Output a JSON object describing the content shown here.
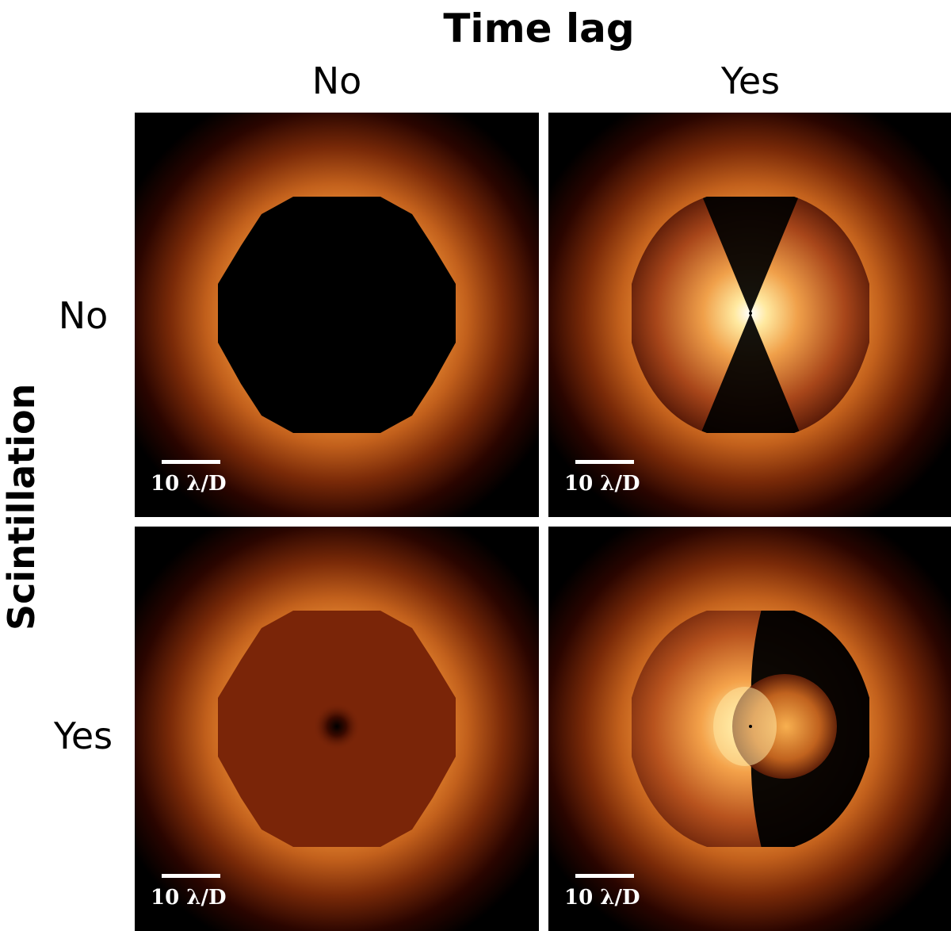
{
  "figure": {
    "column_axis_title": "Time lag",
    "row_axis_title": "Scintillation",
    "column_labels": [
      "No",
      "Yes"
    ],
    "row_labels": [
      "No",
      "Yes"
    ],
    "scale_bar_label": "10 λ/D",
    "colormap": [
      "#000000",
      "#3a0a00",
      "#8a2e06",
      "#d8681a",
      "#ff9a2c",
      "#ffd37a",
      "#ffffff"
    ],
    "panels": [
      {
        "time_lag": "No",
        "scintillation": "No",
        "dark_hole": "fully dark"
      },
      {
        "time_lag": "Yes",
        "scintillation": "No",
        "dark_hole": "butterfly pattern"
      },
      {
        "time_lag": "No",
        "scintillation": "Yes",
        "dark_hole": "uniform residual halo"
      },
      {
        "time_lag": "Yes",
        "scintillation": "Yes",
        "dark_hole": "asymmetric pattern"
      }
    ]
  }
}
